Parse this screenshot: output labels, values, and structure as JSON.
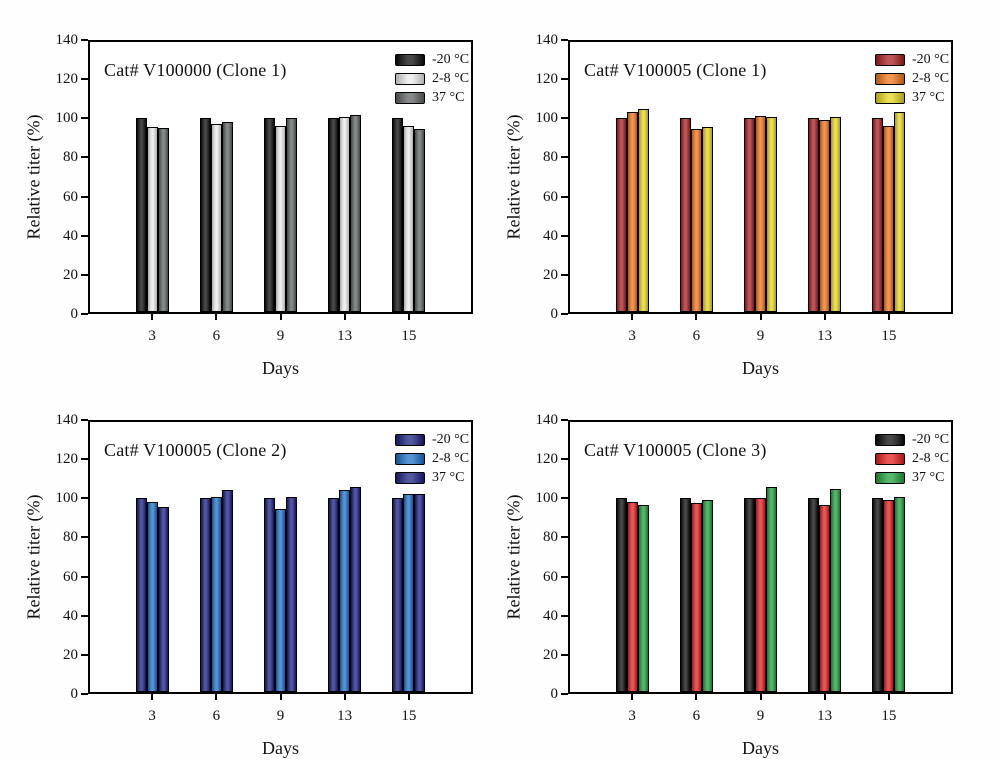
{
  "figure": {
    "background": "#fefefe",
    "frame_color": "#000000",
    "description_note": "Four grouped bar charts of relative titer stability"
  },
  "chart_data": [
    {
      "type": "bar",
      "title": "Cat# V100000 (Clone 1)",
      "xlabel": "Days",
      "ylabel": "Relative titer (%)",
      "ylim": [
        0,
        140
      ],
      "yticks": [
        0,
        20,
        40,
        60,
        80,
        100,
        120,
        140
      ],
      "categories": [
        "3",
        "6",
        "9",
        "13",
        "15"
      ],
      "grid": false,
      "legend_position": "top-right-inside",
      "series": [
        {
          "name": "-20 °C",
          "color": "#0b0b0b",
          "values": [
            100,
            100,
            100,
            100,
            100
          ]
        },
        {
          "name": "2-8 °C",
          "color": "#e9e9e9",
          "values": [
            95,
            97,
            95.5,
            100.5,
            95.5
          ]
        },
        {
          "name": "37 °C",
          "color": "#5d6262",
          "values": [
            94.5,
            98,
            100,
            101.5,
            94
          ]
        }
      ]
    },
    {
      "type": "bar",
      "title": "Cat# V100005 (Clone 1)",
      "xlabel": "Days",
      "ylabel": "Relative titer (%)",
      "ylim": [
        0,
        140
      ],
      "yticks": [
        0,
        20,
        40,
        60,
        80,
        100,
        120,
        140
      ],
      "categories": [
        "3",
        "6",
        "9",
        "13",
        "15"
      ],
      "grid": false,
      "legend_position": "top-right-inside",
      "series": [
        {
          "name": "-20 °C",
          "color": "#a81d20",
          "values": [
            100,
            100,
            100,
            100,
            100
          ]
        },
        {
          "name": "2-8 °C",
          "color": "#ee7418",
          "values": [
            103,
            94,
            101,
            99,
            95.5
          ]
        },
        {
          "name": "37 °C",
          "color": "#e2d31d",
          "values": [
            104.5,
            95,
            100.5,
            100.5,
            103
          ]
        }
      ]
    },
    {
      "type": "bar",
      "title": "Cat# V100005 (Clone 2)",
      "xlabel": "Days",
      "ylabel": "Relative titer (%)",
      "ylim": [
        0,
        140
      ],
      "yticks": [
        0,
        20,
        40,
        60,
        80,
        100,
        120,
        140
      ],
      "categories": [
        "3",
        "6",
        "9",
        "13",
        "15"
      ],
      "grid": false,
      "legend_position": "top-right-inside",
      "series": [
        {
          "name": "-20 °C",
          "color": "#1a1d78",
          "values": [
            100,
            100,
            100,
            100,
            100
          ]
        },
        {
          "name": "2-8 °C",
          "color": "#1e6fc4",
          "values": [
            98,
            100.5,
            94,
            104,
            102
          ]
        },
        {
          "name": "37 °C",
          "color": "#181f80",
          "values": [
            95,
            104,
            100.5,
            105.5,
            102
          ]
        }
      ]
    },
    {
      "type": "bar",
      "title": "Cat# V100005 (Clone 3)",
      "xlabel": "Days",
      "ylabel": "Relative titer (%)",
      "ylim": [
        0,
        140
      ],
      "yticks": [
        0,
        20,
        40,
        60,
        80,
        100,
        120,
        140
      ],
      "categories": [
        "3",
        "6",
        "9",
        "13",
        "15"
      ],
      "grid": false,
      "legend_position": "top-right-inside",
      "series": [
        {
          "name": "-20 °C",
          "color": "#0b0b0b",
          "values": [
            100,
            100,
            100,
            100,
            100
          ]
        },
        {
          "name": "2-8 °C",
          "color": "#e31e1e",
          "values": [
            98,
            97.5,
            100,
            96.5,
            99
          ]
        },
        {
          "name": "37 °C",
          "color": "#1e9e3a",
          "values": [
            96.5,
            99,
            105.5,
            104.5,
            100.5
          ]
        }
      ]
    }
  ]
}
